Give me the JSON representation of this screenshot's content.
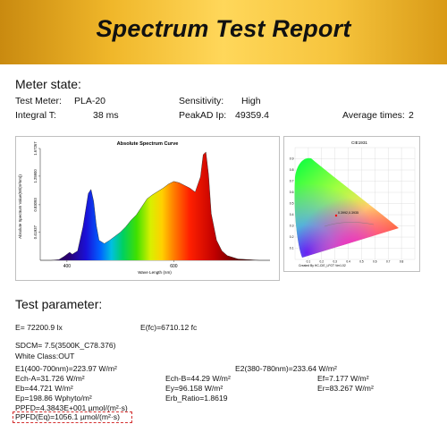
{
  "report": {
    "title": "Spectrum Test Report"
  },
  "meter_state": {
    "heading": "Meter state:",
    "test_meter_label": "Test Meter:",
    "test_meter_value": "PLA-20",
    "sensitivity_label": "Sensitivity:",
    "sensitivity_value": "High",
    "integral_label": "Integral T:",
    "integral_value": "38 ms",
    "peakad_label": "PeakAD Ip:",
    "peakad_value": "49359.4",
    "avg_label": "Average times:",
    "avg_value": "2"
  },
  "spectrum_chart": {
    "title": "Absolute Spectrum Curve",
    "ylabel": "Absolute Spectrum Value(W/(m²nm))",
    "xlabel": "Wave Length (nm)",
    "x_ticks": [
      "400",
      "600"
    ],
    "y_ticks": [
      "0.41937",
      "0.83093",
      "1.25900",
      "1.67267"
    ]
  },
  "cie_chart": {
    "title": "CIE1931",
    "caption": "Created By HC-CIE_LFGT Ver1.02",
    "point_label": "0.3992,0.3935",
    "y_ticks": [
      "0.9",
      "0.8",
      "0.7",
      "0.6",
      "0.5",
      "0.4",
      "0.3",
      "0.2",
      "0.1"
    ],
    "x_ticks": [
      "0.1",
      "0.2",
      "0.3",
      "0.4",
      "0.5",
      "0.6",
      "0.7",
      "0.8"
    ]
  },
  "test_parameter": {
    "heading": "Test parameter:",
    "e": "E=  72200.9 lx",
    "efc": "E(fc)=6710.12 fc",
    "sdcm": "SDCM= 7.5(3500K_C78.376)",
    "white_class": "White Class:OUT",
    "e1": "E1(400-700nm)=223.97 W/m²",
    "e2": "E2(380-780nm)=233.64 W/m²",
    "ech_a": "Ech-A=31.726 W/m²",
    "ech_b": "Ech-B=44.29 W/m²",
    "ef": "Ef=7.177 W/m²",
    "eb": "Eb=44.721 W/m²",
    "ey": "Ey=96.158 W/m²",
    "er": "Er=83.267 W/m²",
    "ep": "Ep=198.86 Wphyto/m²",
    "erb": "Erb_Ratio=1.8619",
    "ppfd": "PPFD=4.3843E+001 µmol/(m²·s)",
    "ppfd_eq": "PPFD(Eq)=1056.1 µmol/(m²·s)"
  },
  "chart_data": {
    "type": "line",
    "title": "Absolute Spectrum Curve",
    "xlabel": "Wave Length (nm)",
    "ylabel": "Absolute Spectrum Value(W/(m²nm))",
    "xlim": [
      350,
      780
    ],
    "ylim": [
      0,
      1.67267
    ],
    "x_ticks": [
      400,
      600
    ],
    "y_ticks": [
      0.41937,
      0.83093,
      1.259,
      1.67267
    ],
    "series": [
      {
        "x": [
          350,
          370,
          385,
          395,
          405,
          410,
          420,
          430,
          440,
          445,
          450,
          455,
          460,
          470,
          480,
          490,
          500,
          510,
          520,
          530,
          540,
          550,
          560,
          570,
          580,
          590,
          600,
          610,
          620,
          630,
          640,
          650,
          655,
          660,
          665,
          670,
          680,
          690,
          700,
          720,
          740,
          760,
          780
        ],
        "y": [
          0,
          0,
          0.01,
          0.06,
          0.12,
          0.09,
          0.14,
          0.5,
          1.0,
          1.06,
          0.88,
          0.52,
          0.3,
          0.25,
          0.3,
          0.36,
          0.42,
          0.5,
          0.6,
          0.68,
          0.8,
          0.92,
          0.98,
          1.03,
          1.08,
          1.14,
          1.18,
          1.16,
          1.12,
          1.08,
          1.02,
          1.25,
          1.58,
          1.62,
          1.28,
          0.7,
          0.3,
          0.14,
          0.07,
          0.02,
          0.01,
          0,
          0
        ]
      }
    ]
  }
}
